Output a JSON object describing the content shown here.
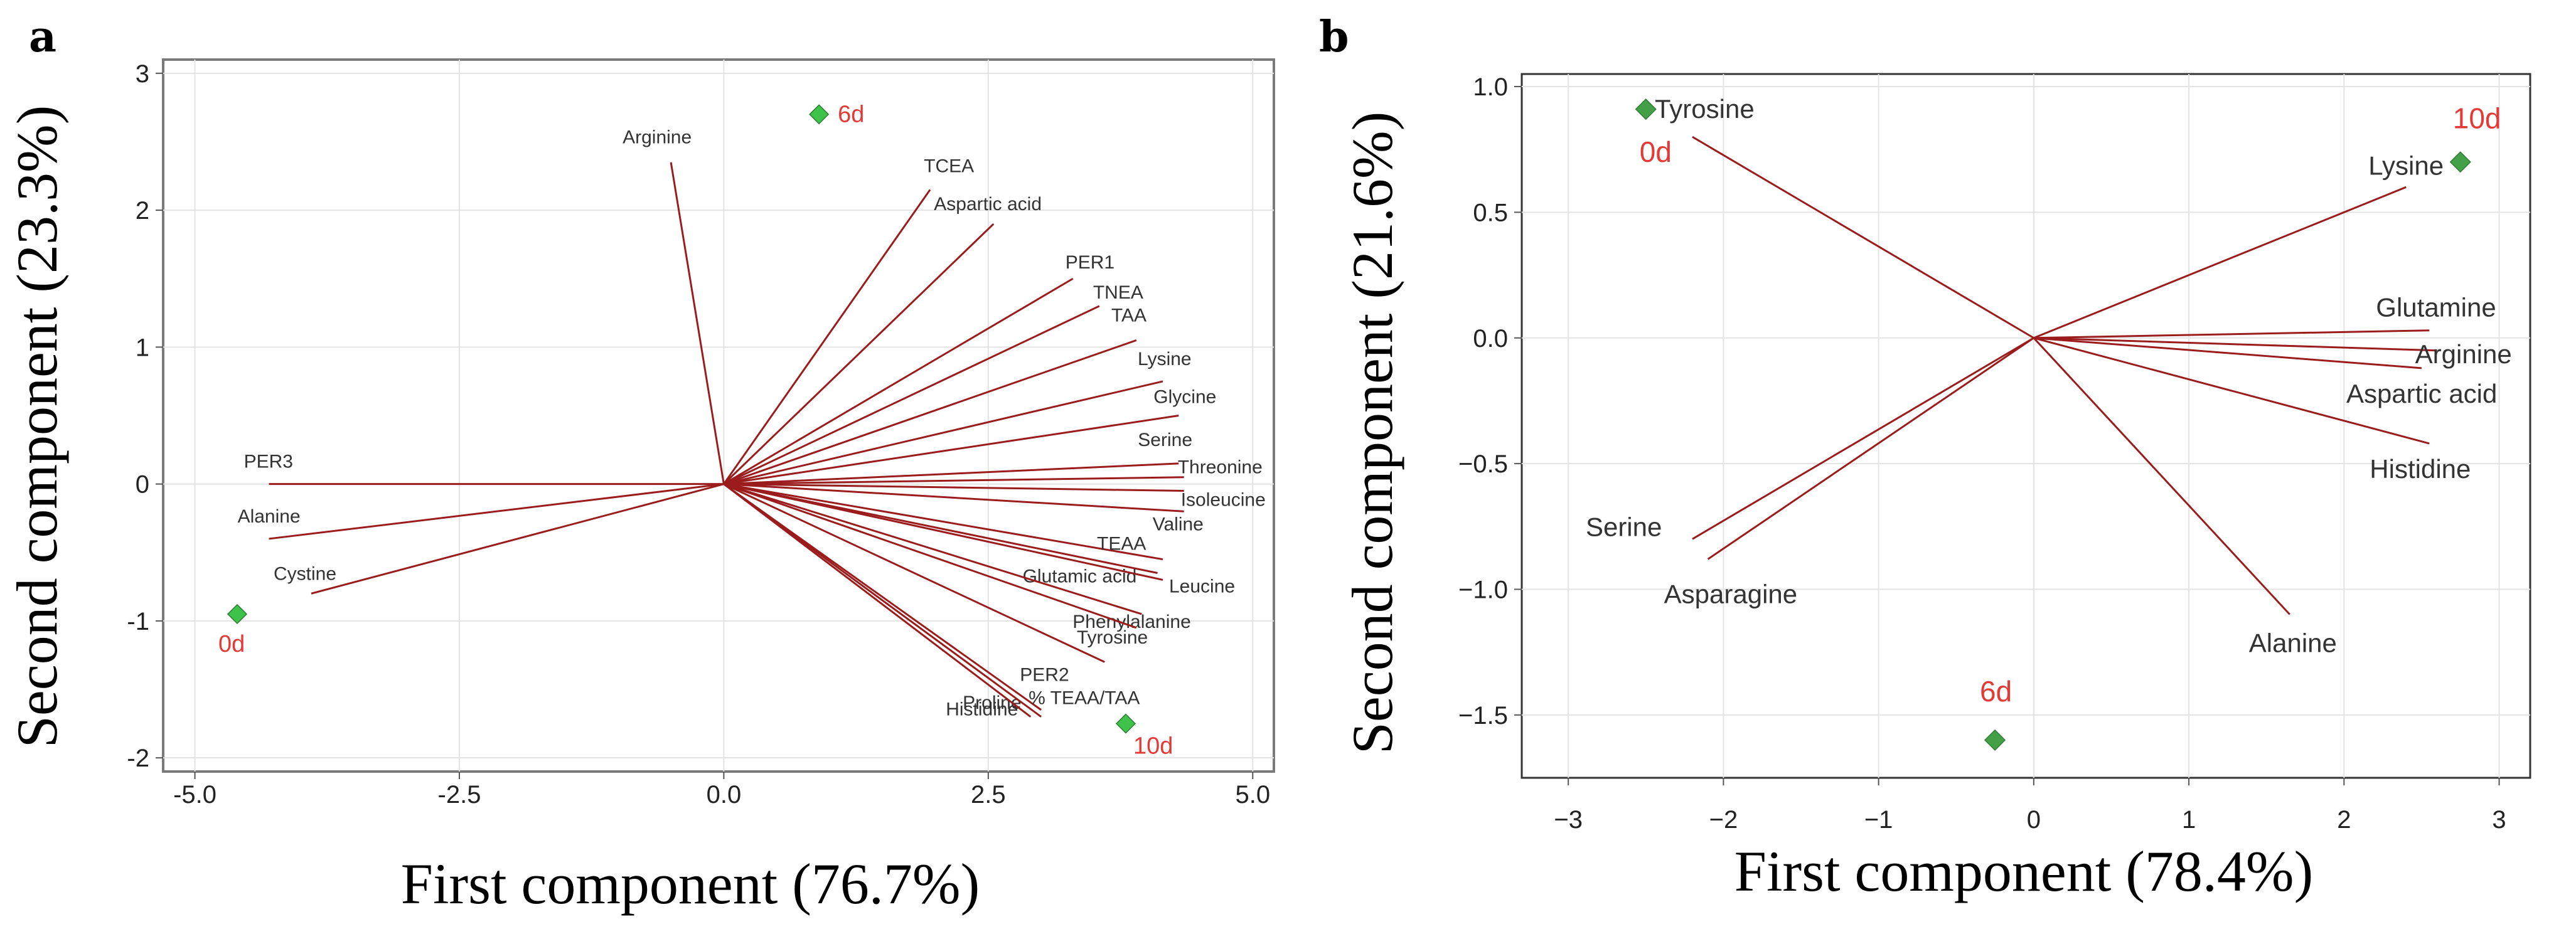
{
  "chart_data": [
    {
      "type": "scatter",
      "subtype": "pca-biplot",
      "panel": "a",
      "xlabel": "First component (76.7%)",
      "ylabel": "Second component (23.3%)",
      "xlim": [
        -5.3,
        5.2
      ],
      "ylim": [
        -2.1,
        3.1
      ],
      "xticks": [
        -5.0,
        -2.5,
        0.0,
        2.5,
        5.0
      ],
      "xtick_labels": [
        "-5.0",
        "-2.5",
        "0.0",
        "2.5",
        "5.0"
      ],
      "yticks": [
        -2,
        -1,
        0,
        1,
        2,
        3
      ],
      "ytick_labels": [
        "-2",
        "-1",
        "0",
        "1",
        "2",
        "3"
      ],
      "grid": true,
      "colors": {
        "vector": "#9b1c1c",
        "point": "#3fc24a",
        "point_label": "#e53935",
        "grid": "#e3e3e3"
      },
      "loadings": [
        {
          "name": "Arginine",
          "x": -0.5,
          "y": 2.35
        },
        {
          "name": "TCEA",
          "x": 1.95,
          "y": 2.15
        },
        {
          "name": "Aspartic acid",
          "x": 2.55,
          "y": 1.9
        },
        {
          "name": "PER1",
          "x": 3.3,
          "y": 1.5
        },
        {
          "name": "TNEA",
          "x": 3.55,
          "y": 1.3
        },
        {
          "name": "TAA",
          "x": 3.9,
          "y": 1.05
        },
        {
          "name": "Lysine",
          "x": 4.15,
          "y": 0.75
        },
        {
          "name": "Glycine",
          "x": 4.3,
          "y": 0.5
        },
        {
          "name": "Serine",
          "x": 4.3,
          "y": 0.15
        },
        {
          "name": "Threonine",
          "x": 4.35,
          "y": 0.05
        },
        {
          "name": "Isoleucine",
          "x": 4.35,
          "y": -0.05
        },
        {
          "name": "Valine",
          "x": 4.35,
          "y": -0.2
        },
        {
          "name": "TEAA",
          "x": 4.15,
          "y": -0.55
        },
        {
          "name": "Glutamic acid",
          "x": 4.1,
          "y": -0.65
        },
        {
          "name": "Leucine",
          "x": 4.15,
          "y": -0.7
        },
        {
          "name": "Phenylalanine",
          "x": 3.95,
          "y": -0.95
        },
        {
          "name": "Tyrosine",
          "x": 3.9,
          "y": -1.05
        },
        {
          "name": "PER2",
          "x": 3.6,
          "y": -1.3
        },
        {
          "name": "Proline",
          "x": 3.0,
          "y": -1.65
        },
        {
          "name": "% TEAA/TAA",
          "x": 3.0,
          "y": -1.7
        },
        {
          "name": "Histidine",
          "x": 2.9,
          "y": -1.7
        },
        {
          "name": "PER3",
          "x": -4.3,
          "y": 0.0
        },
        {
          "name": "Alanine",
          "x": -4.3,
          "y": -0.4
        },
        {
          "name": "Cystine",
          "x": -3.9,
          "y": -0.8
        }
      ],
      "scores": [
        {
          "name": "6d",
          "x": 0.9,
          "y": 2.7
        },
        {
          "name": "0d",
          "x": -4.6,
          "y": -0.95
        },
        {
          "name": "10d",
          "x": 3.8,
          "y": -1.75
        }
      ]
    },
    {
      "type": "scatter",
      "subtype": "pca-biplot",
      "panel": "b",
      "xlabel": "First component (78.4%)",
      "ylabel": "Second component (21.6%)",
      "xlim": [
        -3.3,
        3.2
      ],
      "ylim": [
        -1.75,
        1.05
      ],
      "xticks": [
        -3,
        -2,
        -1,
        0,
        1,
        2,
        3
      ],
      "xtick_labels": [
        "−3",
        "−2",
        "−1",
        "0",
        "1",
        "2",
        "3"
      ],
      "yticks": [
        1.0,
        0.5,
        0.0,
        -0.5,
        -1.0,
        -1.5
      ],
      "ytick_labels": [
        "1.0",
        "0.5",
        "0.0",
        "−0.5",
        "−1.0",
        "−1.5"
      ],
      "grid": true,
      "colors": {
        "vector": "#9b1c1c",
        "point": "#43a047",
        "point_label": "#e53935",
        "grid": "#e3e3e3"
      },
      "loadings": [
        {
          "name": "Tyrosine",
          "x": -2.2,
          "y": 0.8
        },
        {
          "name": "Lysine",
          "x": 2.4,
          "y": 0.6
        },
        {
          "name": "Glutamine",
          "x": 2.55,
          "y": 0.03
        },
        {
          "name": "Arginine",
          "x": 2.6,
          "y": -0.05
        },
        {
          "name": "Aspartic acid",
          "x": 2.5,
          "y": -0.12
        },
        {
          "name": "Histidine",
          "x": 2.55,
          "y": -0.42
        },
        {
          "name": "Serine",
          "x": -2.2,
          "y": -0.8
        },
        {
          "name": "Asparagine",
          "x": -2.1,
          "y": -0.88
        },
        {
          "name": "Alanine",
          "x": 1.65,
          "y": -1.1
        }
      ],
      "scores": [
        {
          "name": "0d",
          "x": -2.5,
          "y": 0.91
        },
        {
          "name": "10d",
          "x": 2.75,
          "y": 0.7
        },
        {
          "name": "6d",
          "x": -0.25,
          "y": -1.6
        }
      ]
    }
  ]
}
